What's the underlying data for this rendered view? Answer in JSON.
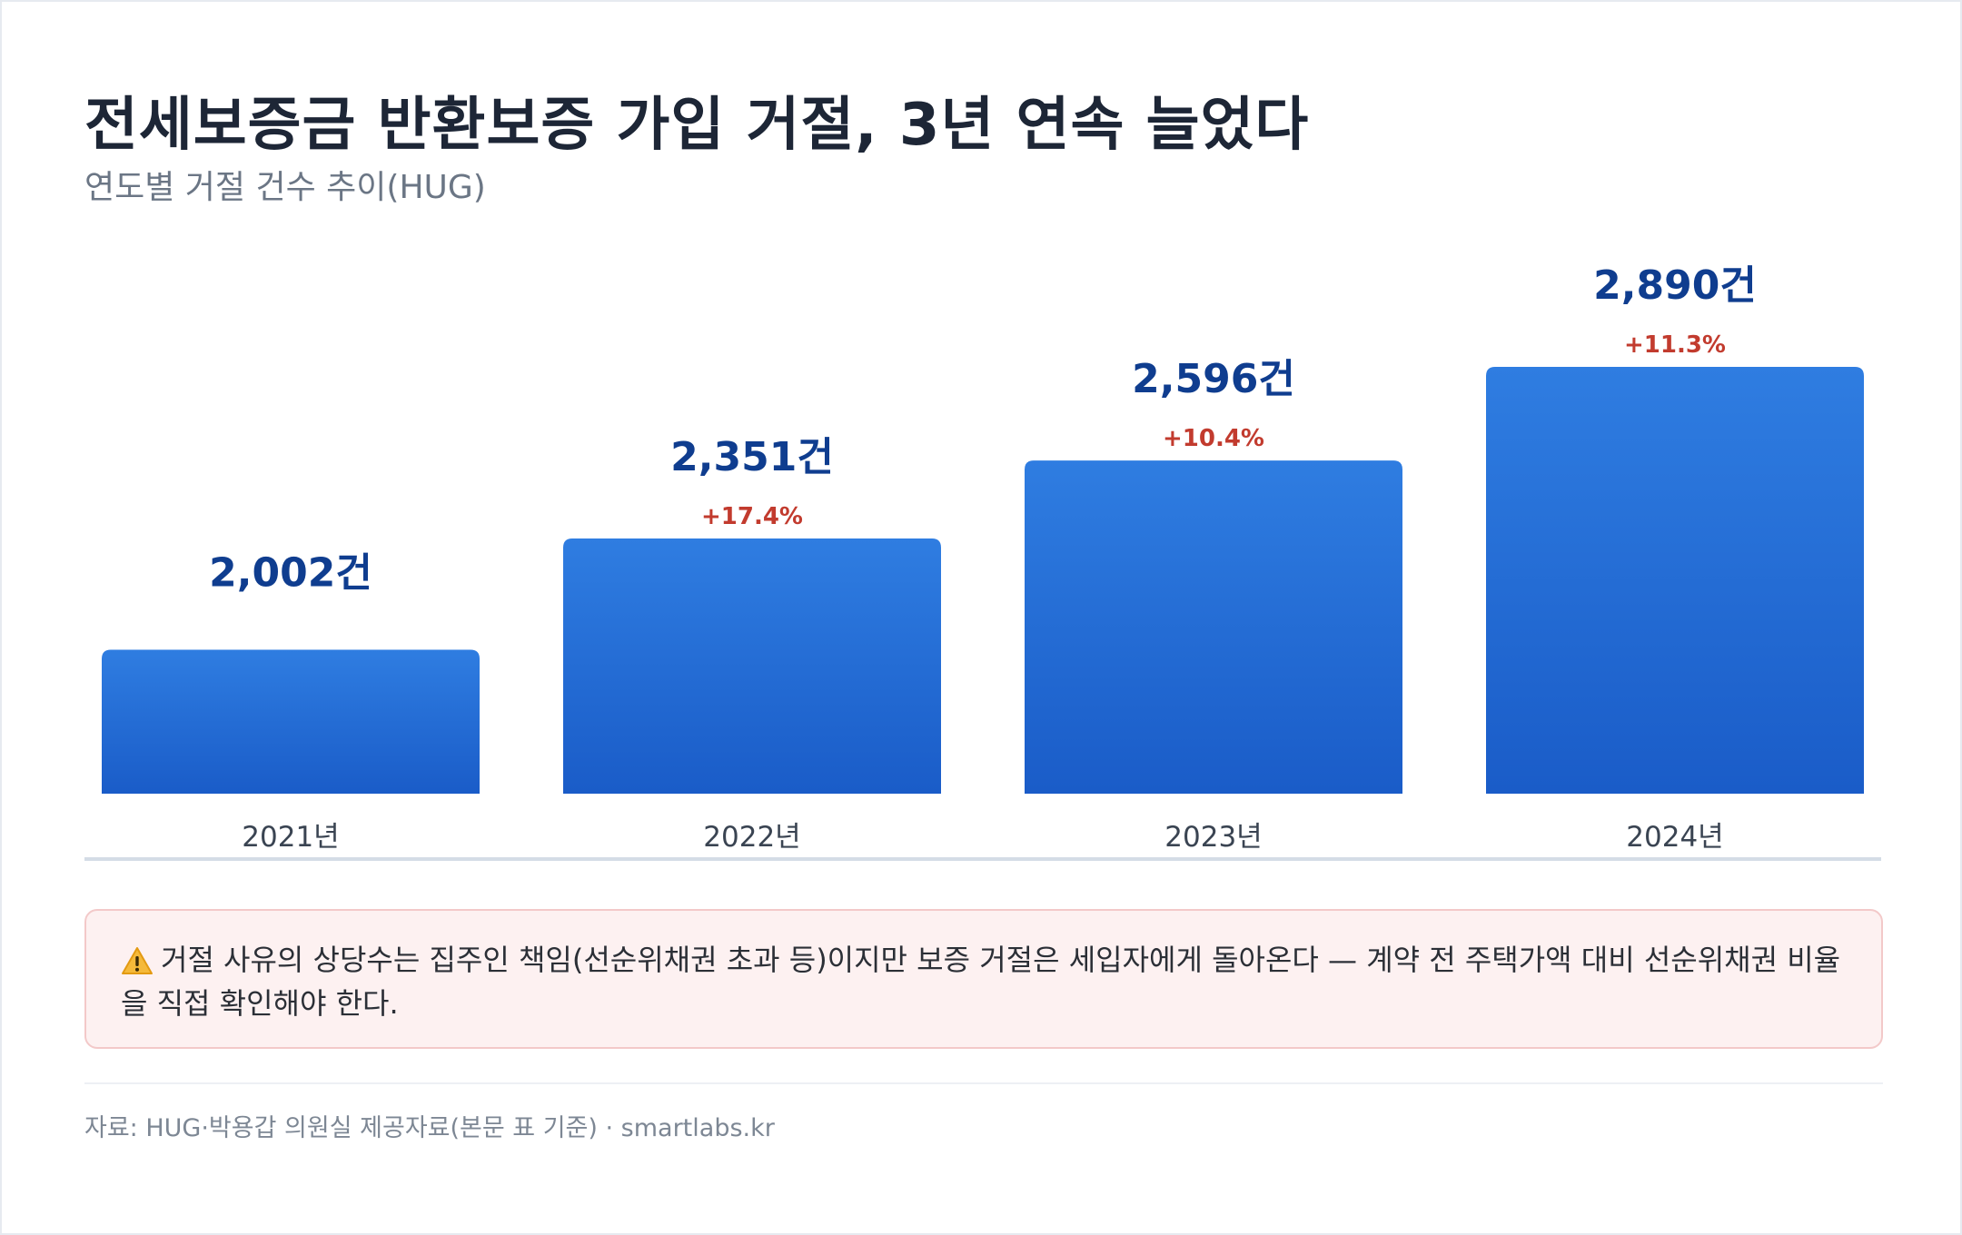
{
  "header": {
    "title": "전세보증금 반환보증 가입 거절, 3년 연속 늘었다",
    "subtitle": "연도별 거절 건수 추이(HUG)"
  },
  "chart_data": {
    "type": "bar",
    "title": "전세보증금 반환보증 가입 거절, 3년 연속 늘었다",
    "subtitle": "연도별 거절 건수 추이(HUG)",
    "categories": [
      "2021년",
      "2022년",
      "2023년",
      "2024년"
    ],
    "values": [
      2002,
      2351,
      2596,
      2890
    ],
    "value_labels": [
      "2,002건",
      "2,351건",
      "2,596건",
      "2,890건"
    ],
    "change_labels": [
      "",
      "+17.4%",
      "+10.4%",
      "+11.3%"
    ],
    "unit": "건",
    "grid": false,
    "legend": "none"
  },
  "colors": {
    "bar_top": "#2f7de1",
    "bar_bottom": "#1a5cc8",
    "value_text": "#0f3d8f",
    "change_text": "#c23b2e",
    "axis_line": "#d4dce6"
  },
  "note": {
    "icon": "warning-icon",
    "text": "거절 사유의 상당수는 집주인 책임(선순위채권 초과 등)이지만 보증 거절은 세입자에게 돌아온다 — 계약 전 주택가액 대비 선순위채권 비율을 직접 확인해야 한다."
  },
  "footer": {
    "source": "자료: HUG·박용갑 의원실 제공자료(본문 표 기준) · smartlabs.kr"
  }
}
